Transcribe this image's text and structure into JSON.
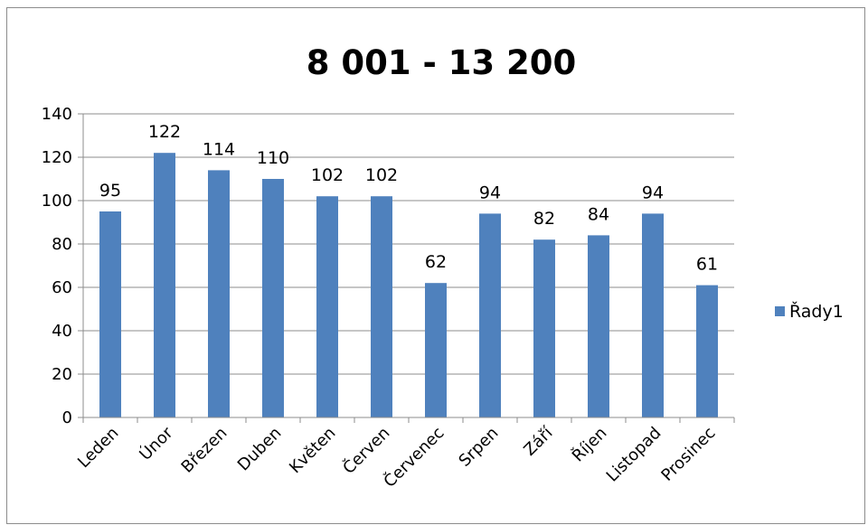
{
  "chart_data": {
    "type": "bar",
    "title": "8 001 - 13 200",
    "categories": [
      "Leden",
      "Únor",
      "Březen",
      "Duben",
      "Květen",
      "Červen",
      "Červenec",
      "Srpen",
      "Září",
      "Říjen",
      "Listopad",
      "Prosinec"
    ],
    "series": [
      {
        "name": "Řady1",
        "values": [
          95,
          122,
          114,
          110,
          102,
          102,
          62,
          94,
          82,
          84,
          94,
          61
        ],
        "color": "#4f81bd"
      }
    ],
    "ylim": [
      0,
      140
    ],
    "yticks": [
      "0",
      "20",
      "40",
      "60",
      "80",
      "100",
      "120",
      "140"
    ],
    "grid": true,
    "legend_position": "right",
    "data_labels": true
  }
}
